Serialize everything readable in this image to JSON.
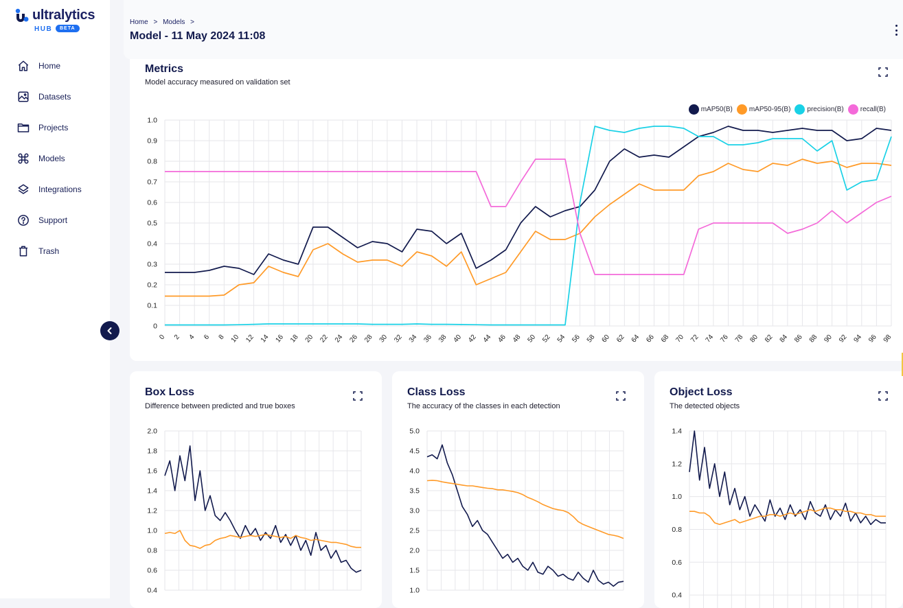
{
  "sidebar": {
    "brand": "ultralytics",
    "hub_label": "HUB",
    "beta_label": "BETA",
    "items": [
      {
        "label": "Home",
        "icon": "home-icon"
      },
      {
        "label": "Datasets",
        "icon": "image-icon"
      },
      {
        "label": "Projects",
        "icon": "folder-icon"
      },
      {
        "label": "Models",
        "icon": "command-icon"
      },
      {
        "label": "Integrations",
        "icon": "layers-icon"
      },
      {
        "label": "Support",
        "icon": "help-circle-icon"
      },
      {
        "label": "Trash",
        "icon": "trash-icon"
      }
    ]
  },
  "header": {
    "breadcrumb": [
      "Home",
      "Models"
    ],
    "separator": ">",
    "title": "Model - 11 May 2024 11:08"
  },
  "metrics_card": {
    "title": "Metrics",
    "subtitle": "Model accuracy measured on validation set"
  },
  "box_loss_card": {
    "title": "Box Loss",
    "subtitle": "Difference between predicted and true boxes"
  },
  "class_loss_card": {
    "title": "Class Loss",
    "subtitle": "The accuracy of the classes in each detection"
  },
  "object_loss_card": {
    "title": "Object Loss",
    "subtitle": "The detected objects"
  },
  "colors": {
    "navy": "#121a4d",
    "orange": "#ff9a27",
    "cyan": "#19d1e6",
    "pink": "#f46ad9"
  },
  "chart_data": [
    {
      "type": "line",
      "chart": "metrics",
      "x": [
        0,
        2,
        4,
        6,
        8,
        10,
        12,
        14,
        16,
        18,
        20,
        22,
        24,
        26,
        28,
        30,
        32,
        34,
        36,
        38,
        40,
        42,
        44,
        46,
        48,
        50,
        52,
        54,
        56,
        58,
        60,
        62,
        64,
        66,
        68,
        70,
        72,
        74,
        76,
        78,
        80,
        82,
        84,
        86,
        88,
        90,
        92,
        94,
        96,
        98
      ],
      "ylim": [
        0,
        1.0
      ],
      "yticks": [
        0,
        0.1,
        0.2,
        0.3,
        0.4,
        0.5,
        0.6,
        0.7,
        0.8,
        0.9,
        1.0
      ],
      "legend_position": "top-right",
      "series": [
        {
          "name": "mAP50(B)",
          "color": "#121a4d",
          "values": [
            0.26,
            0.26,
            0.26,
            0.27,
            0.29,
            0.28,
            0.25,
            0.35,
            0.32,
            0.3,
            0.48,
            0.48,
            0.43,
            0.38,
            0.41,
            0.4,
            0.36,
            0.47,
            0.46,
            0.4,
            0.45,
            0.28,
            0.32,
            0.37,
            0.5,
            0.58,
            0.53,
            0.56,
            0.58,
            0.66,
            0.8,
            0.86,
            0.82,
            0.83,
            0.82,
            0.87,
            0.92,
            0.94,
            0.97,
            0.95,
            0.95,
            0.94,
            0.95,
            0.96,
            0.95,
            0.95,
            0.9,
            0.91,
            0.96,
            0.95
          ]
        },
        {
          "name": "mAP50-95(B)",
          "color": "#ff9a27",
          "values": [
            0.145,
            0.145,
            0.145,
            0.145,
            0.15,
            0.2,
            0.21,
            0.29,
            0.26,
            0.24,
            0.37,
            0.4,
            0.35,
            0.31,
            0.32,
            0.32,
            0.29,
            0.36,
            0.34,
            0.29,
            0.36,
            0.2,
            0.23,
            0.26,
            0.36,
            0.46,
            0.42,
            0.42,
            0.45,
            0.53,
            0.59,
            0.64,
            0.69,
            0.66,
            0.66,
            0.66,
            0.73,
            0.75,
            0.79,
            0.76,
            0.75,
            0.79,
            0.78,
            0.81,
            0.79,
            0.8,
            0.77,
            0.79,
            0.79,
            0.78
          ]
        },
        {
          "name": "precision(B)",
          "color": "#19d1e6",
          "values": [
            0.005,
            0.005,
            0.005,
            0.005,
            0.005,
            0.006,
            0.008,
            0.01,
            0.01,
            0.01,
            0.01,
            0.01,
            0.01,
            0.01,
            0.008,
            0.008,
            0.008,
            0.01,
            0.008,
            0.008,
            0.007,
            0.006,
            0.005,
            0.005,
            0.005,
            0.005,
            0.005,
            0.005,
            0.6,
            0.97,
            0.95,
            0.94,
            0.96,
            0.97,
            0.97,
            0.96,
            0.92,
            0.92,
            0.88,
            0.88,
            0.89,
            0.91,
            0.91,
            0.91,
            0.85,
            0.9,
            0.66,
            0.7,
            0.71,
            0.92
          ]
        },
        {
          "name": "recall(B)",
          "color": "#f46ad9",
          "values": [
            0.75,
            0.75,
            0.75,
            0.75,
            0.75,
            0.75,
            0.75,
            0.75,
            0.75,
            0.75,
            0.75,
            0.75,
            0.75,
            0.75,
            0.75,
            0.75,
            0.75,
            0.75,
            0.75,
            0.75,
            0.75,
            0.75,
            0.58,
            0.58,
            0.7,
            0.81,
            0.81,
            0.81,
            0.45,
            0.25,
            0.25,
            0.25,
            0.25,
            0.25,
            0.25,
            0.25,
            0.47,
            0.5,
            0.5,
            0.5,
            0.5,
            0.5,
            0.45,
            0.47,
            0.5,
            0.56,
            0.5,
            0.55,
            0.6,
            0.63
          ]
        }
      ]
    },
    {
      "type": "line",
      "chart": "box_loss",
      "ylim": [
        0.4,
        2.0
      ],
      "yticks": [
        0.4,
        0.6,
        0.8,
        1.0,
        1.2,
        1.4,
        1.6,
        1.8,
        2.0
      ],
      "series": [
        {
          "color": "#121a4d",
          "values": [
            1.55,
            1.7,
            1.4,
            1.75,
            1.5,
            1.85,
            1.3,
            1.6,
            1.2,
            1.35,
            1.15,
            1.1,
            1.18,
            1.1,
            1.0,
            0.92,
            1.05,
            0.95,
            1.02,
            0.9,
            0.98,
            0.92,
            1.05,
            0.88,
            0.96,
            0.85,
            0.95,
            0.8,
            0.9,
            0.75,
            0.98,
            0.8,
            0.85,
            0.72,
            0.8,
            0.68,
            0.7,
            0.62,
            0.58,
            0.6
          ]
        },
        {
          "color": "#ff9a27",
          "values": [
            0.97,
            0.98,
            0.97,
            1.0,
            0.9,
            0.85,
            0.84,
            0.82,
            0.85,
            0.86,
            0.9,
            0.92,
            0.93,
            0.95,
            0.94,
            0.93,
            0.94,
            0.95,
            0.94,
            0.95,
            0.96,
            0.95,
            0.94,
            0.93,
            0.94,
            0.92,
            0.95,
            0.93,
            0.92,
            0.9,
            0.91,
            0.9,
            0.89,
            0.88,
            0.88,
            0.87,
            0.86,
            0.84,
            0.83,
            0.83
          ]
        }
      ]
    },
    {
      "type": "line",
      "chart": "class_loss",
      "ylim": [
        1.0,
        5.0
      ],
      "yticks": [
        1.0,
        1.5,
        2.0,
        2.5,
        3.0,
        3.5,
        4.0,
        4.5,
        5.0
      ],
      "series": [
        {
          "color": "#121a4d",
          "values": [
            4.35,
            4.4,
            4.3,
            4.65,
            4.2,
            3.9,
            3.5,
            3.1,
            2.9,
            2.6,
            2.75,
            2.5,
            2.4,
            2.2,
            2.0,
            1.8,
            1.9,
            1.7,
            1.8,
            1.6,
            1.5,
            1.7,
            1.45,
            1.4,
            1.6,
            1.5,
            1.35,
            1.4,
            1.3,
            1.25,
            1.45,
            1.3,
            1.2,
            1.5,
            1.25,
            1.15,
            1.2,
            1.1,
            1.2,
            1.22
          ]
        },
        {
          "color": "#ff9a27",
          "values": [
            3.75,
            3.76,
            3.75,
            3.72,
            3.7,
            3.68,
            3.66,
            3.64,
            3.62,
            3.62,
            3.6,
            3.58,
            3.56,
            3.55,
            3.52,
            3.52,
            3.5,
            3.48,
            3.45,
            3.4,
            3.33,
            3.28,
            3.22,
            3.15,
            3.1,
            3.05,
            3.02,
            3.0,
            2.95,
            2.85,
            2.72,
            2.65,
            2.6,
            2.55,
            2.5,
            2.45,
            2.4,
            2.38,
            2.35,
            2.3
          ]
        }
      ]
    },
    {
      "type": "line",
      "chart": "object_loss",
      "ylim": [
        0.3,
        1.4
      ],
      "yticks": [
        0.4,
        0.6,
        0.8,
        1.0,
        1.2,
        1.4
      ],
      "series": [
        {
          "color": "#121a4d",
          "values": [
            1.15,
            1.4,
            1.1,
            1.3,
            1.05,
            1.2,
            1.0,
            1.15,
            0.95,
            1.05,
            0.92,
            1.0,
            0.88,
            0.95,
            0.9,
            0.85,
            0.98,
            0.88,
            0.93,
            0.86,
            0.95,
            0.88,
            0.92,
            0.86,
            0.97,
            0.9,
            0.88,
            0.95,
            0.86,
            0.92,
            0.88,
            0.96,
            0.85,
            0.9,
            0.84,
            0.88,
            0.83,
            0.86,
            0.84,
            0.84
          ]
        },
        {
          "color": "#ff9a27",
          "values": [
            0.91,
            0.91,
            0.9,
            0.9,
            0.88,
            0.84,
            0.83,
            0.84,
            0.85,
            0.86,
            0.84,
            0.85,
            0.86,
            0.87,
            0.88,
            0.88,
            0.89,
            0.89,
            0.88,
            0.89,
            0.9,
            0.89,
            0.9,
            0.91,
            0.92,
            0.91,
            0.92,
            0.93,
            0.93,
            0.92,
            0.92,
            0.91,
            0.91,
            0.9,
            0.9,
            0.89,
            0.89,
            0.88,
            0.88,
            0.88
          ]
        }
      ]
    }
  ]
}
